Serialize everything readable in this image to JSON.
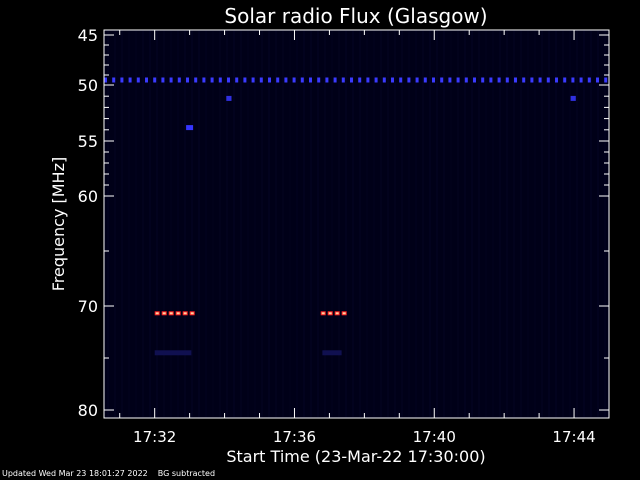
{
  "chart_data": {
    "type": "heatmap",
    "title": "Solar radio Flux (Glasgow)",
    "xlabel": "Start Time (23-Mar-22 17:30:00)",
    "ylabel": "Frequency [MHz]",
    "x_unit": "minutes after 17:30",
    "xlim": [
      0.55,
      15.0
    ],
    "ylim": [
      80.3,
      44.6
    ],
    "y_scale": "non-linear (frequency channels)",
    "x_ticks": [
      {
        "value": 2,
        "label": "17:32"
      },
      {
        "value": 6,
        "label": "17:36"
      },
      {
        "value": 10,
        "label": "17:40"
      },
      {
        "value": 14,
        "label": "17:44"
      }
    ],
    "y_ticks": [
      {
        "value": 45,
        "label": "45"
      },
      {
        "value": 50,
        "label": "50"
      },
      {
        "value": 55,
        "label": "55"
      },
      {
        "value": 60,
        "label": "60"
      },
      {
        "value": 70,
        "label": "70"
      },
      {
        "value": 80,
        "label": "80"
      }
    ],
    "y_minor_ticks": [
      46,
      47,
      48,
      49,
      51,
      52,
      53,
      54,
      56,
      57,
      58,
      59,
      65,
      75
    ],
    "background_color": "#000018",
    "features": [
      {
        "kind": "band",
        "freq": 49.5,
        "x_start": 0.55,
        "x_end": 15.0,
        "color": "#3a3aff",
        "dashed": true
      },
      {
        "kind": "spot",
        "freq": 51.2,
        "x_start": 4.05,
        "x_end": 4.2,
        "color": "#3030e0"
      },
      {
        "kind": "spot",
        "freq": 51.2,
        "x_start": 13.9,
        "x_end": 14.05,
        "color": "#3030e0"
      },
      {
        "kind": "spot",
        "freq": 53.8,
        "x_start": 2.9,
        "x_end": 3.1,
        "color": "#3535ff"
      },
      {
        "kind": "burst",
        "freq": 70.7,
        "x_start": 2.0,
        "x_end": 3.05,
        "color": "#ff2020",
        "dashed": true
      },
      {
        "kind": "burst",
        "freq": 70.7,
        "x_start": 6.75,
        "x_end": 7.4,
        "color": "#ff2020",
        "dashed": true
      },
      {
        "kind": "faint",
        "freq": 74.5,
        "x_start": 2.0,
        "x_end": 3.05,
        "color": "#101050"
      },
      {
        "kind": "faint",
        "freq": 74.5,
        "x_start": 6.8,
        "x_end": 7.35,
        "color": "#101050"
      }
    ]
  },
  "footer": {
    "updated": "Updated Wed Mar 23 18:01:27 2022",
    "note": "BG subtracted"
  }
}
